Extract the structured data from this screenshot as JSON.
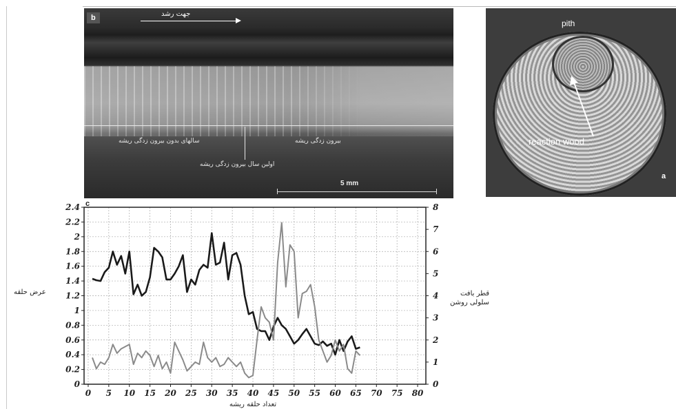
{
  "panel_b": {
    "letter": "b",
    "arrow_label": "جهت رشد",
    "label_without_eccentricity": "سالهای بدون بیرون زدگی ریشه",
    "label_eccentricity": "بیرون زدگی ریشه",
    "label_first_year": "اولین سال بیرون زدگی ریشه",
    "scale_label": "5 mm"
  },
  "panel_a": {
    "pith_label": "pith",
    "reaction_wood_label": "reaction wood",
    "letter": "a"
  },
  "panel_c": {
    "letter": "c",
    "left_axis_label": "عرض حلقه",
    "right_axis_label_line1": "قطر بافت",
    "right_axis_label_line2": "سلولی روشن",
    "x_axis_label": "تعداد حلقه ریشه"
  },
  "chart_data": {
    "type": "line",
    "xlabel": "تعداد حلقه ریشه",
    "ylabel": "عرض حلقه",
    "y2label": "قطر بافت سلولی روشن",
    "xlim": [
      -1,
      82
    ],
    "ylim": [
      0,
      2.4
    ],
    "y2lim": [
      0,
      8
    ],
    "xticks": [
      "0",
      "5",
      "10",
      "15",
      "20",
      "25",
      "30",
      "35",
      "40",
      "45",
      "50",
      "55",
      "60",
      "65",
      "70",
      "75",
      "80"
    ],
    "yticks": [
      "0",
      "0.2",
      "0.4",
      "0.6",
      "0.8",
      "1",
      "1.2",
      "1.4",
      "1.6",
      "1.8",
      "2",
      "2.2",
      "2.4"
    ],
    "y2ticks": [
      "0",
      "1",
      "2",
      "3",
      "4",
      "5",
      "6",
      "7",
      "8"
    ],
    "grid": true,
    "series": [
      {
        "axis": "left",
        "color": "#1a1a1a",
        "x": [
          1,
          2,
          3,
          4,
          5,
          6,
          7,
          8,
          9,
          10,
          11,
          12,
          13,
          14,
          15,
          16,
          17,
          18,
          19,
          20,
          21,
          22,
          23,
          24,
          25,
          26,
          27,
          28,
          29,
          30,
          31,
          32,
          33,
          34,
          35,
          36,
          37,
          38,
          39,
          40,
          41,
          42,
          43,
          44,
          45,
          46,
          47,
          48,
          49,
          50,
          51,
          52,
          53,
          54,
          55,
          56,
          57,
          58,
          59,
          60,
          61,
          62,
          63,
          64,
          65,
          66
        ],
        "values": [
          1.43,
          1.41,
          1.4,
          1.52,
          1.58,
          1.8,
          1.62,
          1.74,
          1.5,
          1.8,
          1.22,
          1.35,
          1.2,
          1.25,
          1.45,
          1.85,
          1.8,
          1.72,
          1.42,
          1.42,
          1.5,
          1.6,
          1.75,
          1.25,
          1.42,
          1.35,
          1.55,
          1.62,
          1.58,
          2.05,
          1.62,
          1.65,
          1.92,
          1.42,
          1.75,
          1.78,
          1.62,
          1.2,
          0.95,
          0.98,
          0.75,
          0.72,
          0.72,
          0.6,
          0.78,
          0.9,
          0.8,
          0.75,
          0.65,
          0.55,
          0.6,
          0.68,
          0.75,
          0.65,
          0.55,
          0.53,
          0.58,
          0.52,
          0.55,
          0.4,
          0.6,
          0.45,
          0.58,
          0.65,
          0.48,
          0.5
        ]
      },
      {
        "axis": "right",
        "color": "#8a8a8a",
        "x": [
          1,
          2,
          3,
          4,
          5,
          6,
          7,
          8,
          9,
          10,
          11,
          12,
          13,
          14,
          15,
          16,
          17,
          18,
          19,
          20,
          21,
          22,
          23,
          24,
          25,
          26,
          27,
          28,
          29,
          30,
          31,
          32,
          33,
          34,
          35,
          36,
          37,
          38,
          39,
          40,
          41,
          42,
          43,
          44,
          45,
          46,
          47,
          48,
          49,
          50,
          51,
          52,
          53,
          54,
          55,
          56,
          57,
          58,
          59,
          60,
          61,
          62,
          63,
          64,
          65,
          66
        ],
        "values": [
          1.2,
          0.7,
          1.0,
          0.9,
          1.2,
          1.8,
          1.4,
          1.6,
          1.7,
          1.8,
          0.9,
          1.4,
          1.2,
          1.5,
          1.3,
          0.8,
          1.3,
          0.7,
          1.0,
          0.5,
          1.9,
          1.5,
          1.1,
          0.6,
          0.8,
          1.0,
          0.9,
          1.9,
          1.2,
          1.0,
          1.2,
          0.8,
          0.9,
          1.2,
          1.0,
          0.8,
          1.0,
          0.5,
          0.3,
          0.4,
          2.0,
          3.5,
          3.0,
          2.8,
          2.0,
          5.5,
          7.3,
          4.4,
          6.3,
          6.0,
          3.0,
          4.1,
          4.2,
          4.5,
          3.5,
          2.0,
          1.5,
          1.0,
          1.3,
          2.0,
          1.5,
          1.8,
          0.7,
          0.5,
          1.5,
          1.3
        ]
      }
    ]
  }
}
